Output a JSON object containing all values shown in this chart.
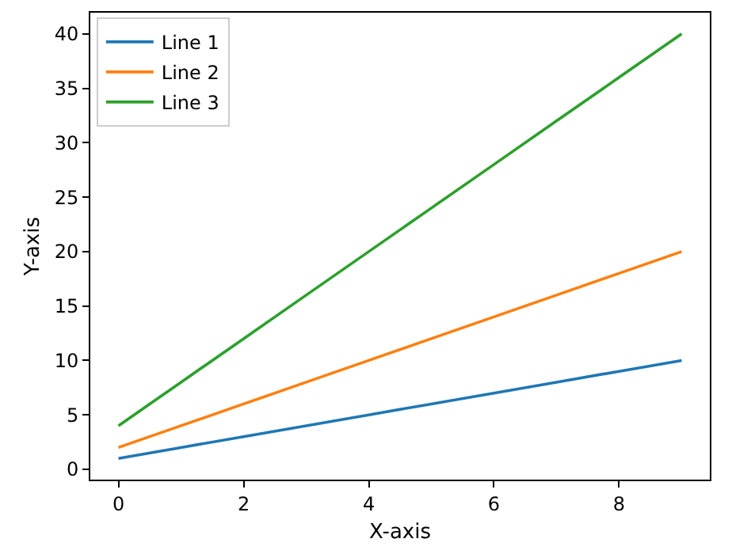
{
  "chart_data": {
    "type": "line",
    "xlabel": "X-axis",
    "ylabel": "Y-axis",
    "x": [
      0,
      1,
      2,
      3,
      4,
      5,
      6,
      7,
      8,
      9
    ],
    "series": [
      {
        "name": "Line 1",
        "color": "#1f77b4",
        "values": [
          1,
          2,
          3,
          4,
          5,
          6,
          7,
          8,
          9,
          10
        ]
      },
      {
        "name": "Line 2",
        "color": "#ff7f0e",
        "values": [
          2,
          4,
          6,
          8,
          10,
          12,
          14,
          16,
          18,
          20
        ]
      },
      {
        "name": "Line 3",
        "color": "#2ca02c",
        "values": [
          4,
          8,
          12,
          16,
          20,
          24,
          28,
          32,
          36,
          40
        ]
      }
    ],
    "xlim": [
      -0.45,
      9.45
    ],
    "xticks": [
      0,
      2,
      4,
      6,
      8
    ],
    "ylim": [
      -0.95,
      41.95
    ],
    "yticks": [
      0,
      5,
      10,
      15,
      20,
      25,
      30,
      35,
      40
    ],
    "legend": "top left",
    "marker": "none",
    "line_style": "solid"
  }
}
